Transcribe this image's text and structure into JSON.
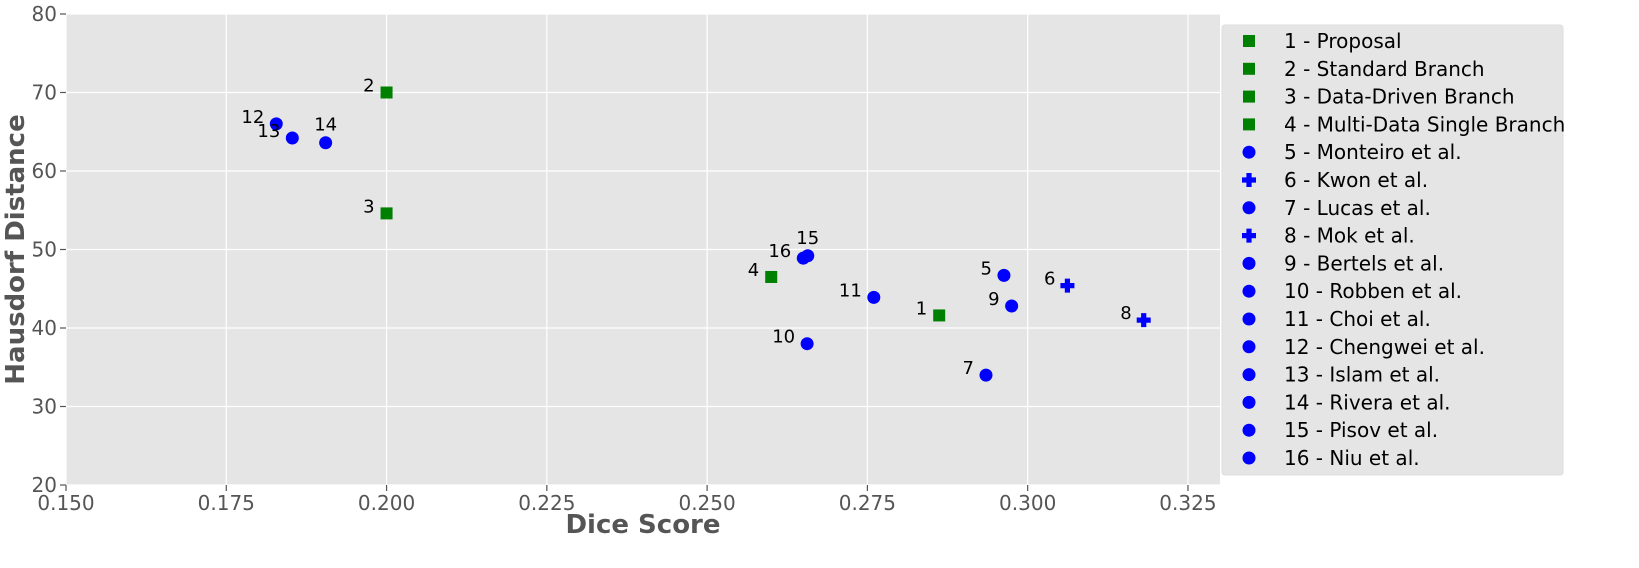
{
  "chart_data": {
    "type": "scatter",
    "xlabel": "Dice Score",
    "ylabel": "Hausdorf Distance",
    "xlim": [
      0.15,
      0.33
    ],
    "ylim": [
      20,
      80
    ],
    "xticks": [
      "0.150",
      "0.175",
      "0.200",
      "0.225",
      "0.250",
      "0.275",
      "0.300",
      "0.325"
    ],
    "yticks": [
      "20",
      "30",
      "40",
      "50",
      "60",
      "70",
      "80"
    ],
    "grid": true,
    "legend_position": "right",
    "colors": {
      "green": "#008000",
      "blue": "#0000ff",
      "background": "#e5e5e5",
      "grid": "#ffffff"
    },
    "points": [
      {
        "id": "1",
        "legend": "1 - Proposal",
        "x": 0.2862,
        "y": 41.6,
        "marker": "square",
        "color": "#008000",
        "label_side": "left"
      },
      {
        "id": "2",
        "legend": "2 - Standard Branch",
        "x": 0.2,
        "y": 70.0,
        "marker": "square",
        "color": "#008000",
        "label_side": "left"
      },
      {
        "id": "3",
        "legend": "3 - Data-Driven Branch",
        "x": 0.2,
        "y": 54.6,
        "marker": "square",
        "color": "#008000",
        "label_side": "left"
      },
      {
        "id": "4",
        "legend": "4 - Multi-Data Single Branch",
        "x": 0.26,
        "y": 46.5,
        "marker": "square",
        "color": "#008000",
        "label_side": "left"
      },
      {
        "id": "5",
        "legend": "5 - Monteiro et al.",
        "x": 0.2963,
        "y": 46.7,
        "marker": "circle",
        "color": "#0000ff",
        "label_side": "left"
      },
      {
        "id": "6",
        "legend": "6 - Kwon et al.",
        "x": 0.3062,
        "y": 45.4,
        "marker": "plus",
        "color": "#0000ff",
        "label_side": "left"
      },
      {
        "id": "7",
        "legend": "7 - Lucas et al.",
        "x": 0.2935,
        "y": 34.0,
        "marker": "circle",
        "color": "#0000ff",
        "label_side": "left"
      },
      {
        "id": "8",
        "legend": "8 - Mok et al.",
        "x": 0.3181,
        "y": 41.0,
        "marker": "plus",
        "color": "#0000ff",
        "label_side": "left"
      },
      {
        "id": "9",
        "legend": "9 - Bertels et al.",
        "x": 0.2975,
        "y": 42.8,
        "marker": "circle",
        "color": "#0000ff",
        "label_side": "left"
      },
      {
        "id": "10",
        "legend": "10 - Robben et al.",
        "x": 0.2656,
        "y": 38.0,
        "marker": "circle",
        "color": "#0000ff",
        "label_side": "left"
      },
      {
        "id": "11",
        "legend": "11 - Choi et al.",
        "x": 0.276,
        "y": 43.9,
        "marker": "circle",
        "color": "#0000ff",
        "label_side": "left"
      },
      {
        "id": "12",
        "legend": "12 - Chengwei et al.",
        "x": 0.1828,
        "y": 66.0,
        "marker": "circle",
        "color": "#0000ff",
        "label_side": "left"
      },
      {
        "id": "13",
        "legend": "13 - Islam et al.",
        "x": 0.1853,
        "y": 64.2,
        "marker": "circle",
        "color": "#0000ff",
        "label_side": "left"
      },
      {
        "id": "14",
        "legend": "14 - Rivera et al.",
        "x": 0.1905,
        "y": 63.6,
        "marker": "circle",
        "color": "#0000ff",
        "label_side": "above"
      },
      {
        "id": "15",
        "legend": "15 - Pisov et al.",
        "x": 0.2657,
        "y": 49.2,
        "marker": "circle",
        "color": "#0000ff",
        "label_side": "above"
      },
      {
        "id": "16",
        "legend": "16 - Niu et al.",
        "x": 0.265,
        "y": 48.9,
        "marker": "circle",
        "color": "#0000ff",
        "label_side": "left"
      }
    ]
  }
}
